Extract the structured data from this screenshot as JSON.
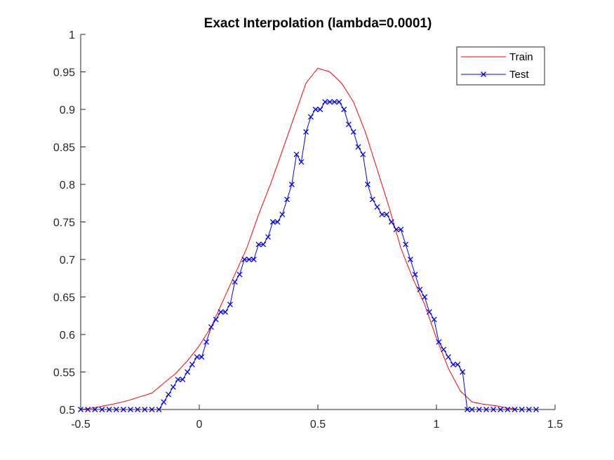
{
  "chart_data": {
    "type": "line",
    "title": "Exact Interpolation (lambda=0.0001)",
    "xlabel": "",
    "ylabel": "",
    "xlim": [
      -0.5,
      1.5
    ],
    "ylim": [
      0.5,
      1.0
    ],
    "xticks": [
      -0.5,
      0,
      0.5,
      1,
      1.5
    ],
    "xtick_labels": [
      "-0.5",
      "0",
      "0.5",
      "1",
      "1.5"
    ],
    "yticks": [
      0.5,
      0.55,
      0.6,
      0.65,
      0.7,
      0.75,
      0.8,
      0.85,
      0.9,
      0.95,
      1.0
    ],
    "ytick_labels": [
      "0.5",
      "0.55",
      "0.6",
      "0.65",
      "0.7",
      "0.75",
      "0.8",
      "0.85",
      "0.9",
      "0.95",
      "1"
    ],
    "grid": false,
    "legend_position": "top-right",
    "series": [
      {
        "name": "Train",
        "color": "#ff0000",
        "marker": "none",
        "x": [
          -0.5,
          -0.45,
          -0.4,
          -0.35,
          -0.3,
          -0.25,
          -0.2,
          -0.15,
          -0.1,
          -0.05,
          0.0,
          0.05,
          0.1,
          0.15,
          0.2,
          0.25,
          0.3,
          0.35,
          0.4,
          0.45,
          0.5,
          0.55,
          0.6,
          0.65,
          0.7,
          0.75,
          0.8,
          0.85,
          0.9,
          0.95,
          1.0,
          1.05,
          1.1,
          1.15,
          1.2,
          1.25,
          1.3,
          1.35,
          1.4
        ],
        "y": [
          0.5,
          0.502,
          0.505,
          0.508,
          0.512,
          0.517,
          0.522,
          0.535,
          0.548,
          0.565,
          0.585,
          0.61,
          0.645,
          0.68,
          0.715,
          0.76,
          0.8,
          0.845,
          0.89,
          0.935,
          0.955,
          0.95,
          0.935,
          0.91,
          0.87,
          0.82,
          0.77,
          0.715,
          0.675,
          0.64,
          0.595,
          0.555,
          0.525,
          0.51,
          0.507,
          0.505,
          0.502,
          0.5,
          0.5
        ]
      },
      {
        "name": "Test",
        "color": "#0000ff",
        "marker": "x",
        "x": [
          -0.5,
          -0.47,
          -0.44,
          -0.41,
          -0.38,
          -0.35,
          -0.32,
          -0.29,
          -0.26,
          -0.23,
          -0.2,
          -0.17,
          -0.15,
          -0.13,
          -0.11,
          -0.09,
          -0.07,
          -0.05,
          -0.03,
          -0.01,
          0.01,
          0.03,
          0.05,
          0.07,
          0.09,
          0.11,
          0.13,
          0.15,
          0.17,
          0.19,
          0.21,
          0.23,
          0.25,
          0.27,
          0.29,
          0.31,
          0.33,
          0.35,
          0.37,
          0.39,
          0.41,
          0.43,
          0.45,
          0.47,
          0.49,
          0.51,
          0.53,
          0.55,
          0.57,
          0.59,
          0.61,
          0.63,
          0.65,
          0.67,
          0.69,
          0.71,
          0.73,
          0.75,
          0.77,
          0.79,
          0.81,
          0.83,
          0.85,
          0.87,
          0.89,
          0.91,
          0.93,
          0.95,
          0.97,
          0.99,
          1.01,
          1.03,
          1.05,
          1.07,
          1.09,
          1.11,
          1.13,
          1.15,
          1.18,
          1.21,
          1.24,
          1.27,
          1.3,
          1.33,
          1.36,
          1.39,
          1.42
        ],
        "y": [
          0.5,
          0.5,
          0.5,
          0.5,
          0.5,
          0.5,
          0.5,
          0.5,
          0.5,
          0.5,
          0.5,
          0.5,
          0.51,
          0.52,
          0.53,
          0.54,
          0.54,
          0.55,
          0.56,
          0.57,
          0.57,
          0.59,
          0.61,
          0.62,
          0.63,
          0.63,
          0.64,
          0.67,
          0.68,
          0.7,
          0.7,
          0.7,
          0.72,
          0.72,
          0.73,
          0.75,
          0.75,
          0.76,
          0.78,
          0.8,
          0.84,
          0.83,
          0.87,
          0.89,
          0.9,
          0.9,
          0.91,
          0.91,
          0.91,
          0.91,
          0.9,
          0.88,
          0.87,
          0.85,
          0.84,
          0.8,
          0.78,
          0.77,
          0.76,
          0.76,
          0.75,
          0.74,
          0.74,
          0.72,
          0.7,
          0.68,
          0.66,
          0.65,
          0.63,
          0.62,
          0.59,
          0.58,
          0.57,
          0.56,
          0.56,
          0.55,
          0.5,
          0.5,
          0.5,
          0.5,
          0.5,
          0.5,
          0.5,
          0.5,
          0.5,
          0.5,
          0.5
        ]
      }
    ]
  }
}
